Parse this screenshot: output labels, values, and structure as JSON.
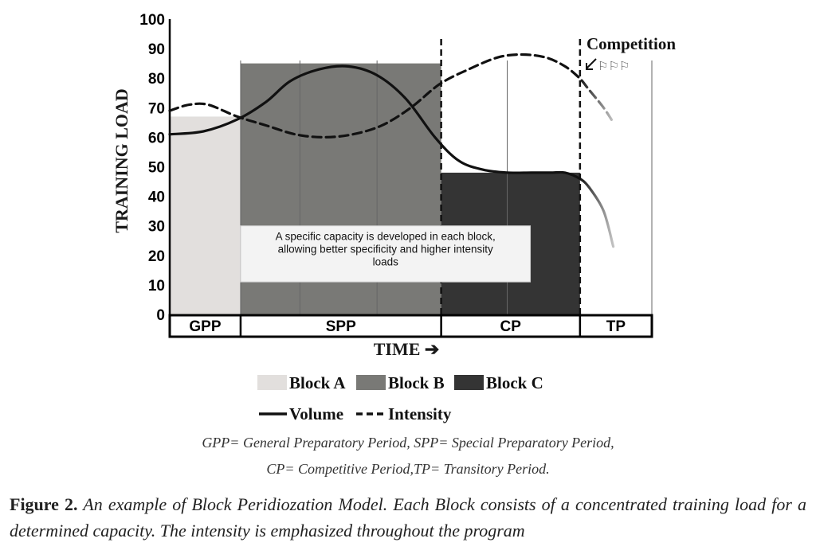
{
  "chart_data": {
    "type": "area",
    "ylabel": "TRAINING LOAD",
    "xlabel": "TIME ➔",
    "ylim": [
      0,
      100
    ],
    "yticks": [
      "0",
      "10",
      "20",
      "30",
      "40",
      "50",
      "60",
      "70",
      "80",
      "90",
      "100"
    ],
    "periods": [
      {
        "label": "GPP",
        "start": 0,
        "end": 0.147
      },
      {
        "label": "SPP",
        "start": 0.147,
        "end": 0.563
      },
      {
        "label": "CP",
        "start": 0.563,
        "end": 0.851
      },
      {
        "label": "TP",
        "start": 0.851,
        "end": 1.0
      }
    ],
    "blocks": [
      {
        "name": "Block A",
        "start": 0,
        "end": 0.147,
        "value": 67,
        "color": "#e2dfdd"
      },
      {
        "name": "Block B",
        "start": 0.147,
        "end": 0.563,
        "value": 85,
        "color": "#797976"
      },
      {
        "name": "Block C",
        "start": 0.563,
        "end": 0.851,
        "value": 48,
        "color": "#343434"
      }
    ],
    "series": [
      {
        "name": "Volume",
        "style": "solid",
        "x": [
          0.0,
          0.07,
          0.14,
          0.2,
          0.25,
          0.31,
          0.37,
          0.43,
          0.49,
          0.55,
          0.6,
          0.65,
          0.7,
          0.75,
          0.79,
          0.82,
          0.85,
          0.87,
          0.9,
          0.92
        ],
        "y": [
          61,
          62,
          66,
          72,
          79,
          83,
          84,
          81,
          73,
          60,
          52,
          49,
          48,
          48,
          48,
          48,
          46,
          43,
          35,
          23
        ]
      },
      {
        "name": "Intensity",
        "style": "dashed",
        "x": [
          0.0,
          0.04,
          0.08,
          0.14,
          0.2,
          0.26,
          0.32,
          0.38,
          0.44,
          0.5,
          0.56,
          0.62,
          0.68,
          0.73,
          0.78,
          0.82,
          0.85,
          0.87,
          0.9,
          0.92
        ],
        "y": [
          69,
          71,
          71,
          67,
          64,
          61,
          60,
          61,
          64,
          70,
          78,
          83,
          87,
          88,
          87,
          84,
          80,
          76,
          70,
          65
        ]
      }
    ],
    "annotation": [
      "A specific capacity is developed in each block,",
      "allowing better specificity and higher intensity",
      "loads"
    ],
    "competition_label": "Competition",
    "competition_flags": "⚐⚐⚐",
    "legend": {
      "blocks": [
        "Block A",
        "Block B",
        "Block C"
      ],
      "lines": [
        "Volume",
        "Intensity"
      ]
    },
    "grid": true
  },
  "notes": {
    "line1": "GPP= General Preparatory Period, SPP= Special Preparatory Period,",
    "line2": "CP= Competitive Period,TP= Transitory Period."
  },
  "caption": {
    "label": "Figure 2.",
    "text": " An example of Block Peridiozation Model. Each Block consists of a concentrated training load for a determined capacity. The intensity is emphasized throughout the program"
  }
}
